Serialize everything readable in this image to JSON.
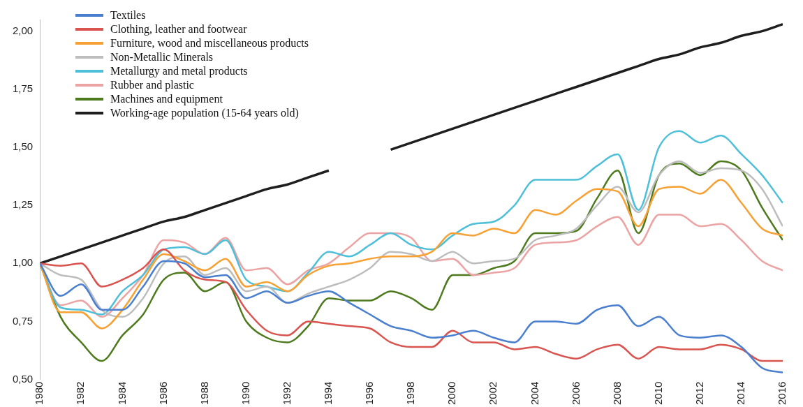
{
  "chart_data": {
    "type": "line",
    "x": [
      1980,
      1981,
      1982,
      1983,
      1984,
      1985,
      1986,
      1987,
      1988,
      1989,
      1990,
      1991,
      1992,
      1993,
      1994,
      1995,
      1996,
      1997,
      1998,
      1999,
      2000,
      2001,
      2002,
      2003,
      2004,
      2005,
      2006,
      2007,
      2008,
      2009,
      2010,
      2011,
      2012,
      2013,
      2014,
      2015,
      2016
    ],
    "xlim": [
      1980,
      2016
    ],
    "xticks": [
      1980,
      1982,
      1984,
      1986,
      1988,
      1990,
      1992,
      1994,
      1996,
      1998,
      2000,
      2002,
      2004,
      2006,
      2008,
      2010,
      2012,
      2014,
      2016
    ],
    "ylim": [
      0.5,
      2.05
    ],
    "yticks": [
      {
        "value": 0.5,
        "label": "0,50"
      },
      {
        "value": 0.75,
        "label": "0,75"
      },
      {
        "value": 1,
        "label": "1,00"
      },
      {
        "value": 1.25,
        "label": "1,25"
      },
      {
        "value": 1.5,
        "label": "1,50"
      },
      {
        "value": 1.75,
        "label": "1,75"
      },
      {
        "value": 2,
        "label": "2,00"
      }
    ],
    "grid": false,
    "legend": "top left",
    "marker": "none",
    "line_style": "solid",
    "series": [
      {
        "name": "Textiles",
        "color": "#4a7fcf",
        "values": [
          1.0,
          0.86,
          0.91,
          0.8,
          0.8,
          0.9,
          1.01,
          1.0,
          0.94,
          0.95,
          0.85,
          0.88,
          0.83,
          0.86,
          0.88,
          0.83,
          0.78,
          0.73,
          0.71,
          0.68,
          0.69,
          0.71,
          0.68,
          0.66,
          0.75,
          0.75,
          0.74,
          0.8,
          0.82,
          0.73,
          0.77,
          0.69,
          0.68,
          0.69,
          0.64,
          0.55,
          0.53
        ]
      },
      {
        "name": "Clothing, leather and footwear",
        "color": "#d9534f",
        "values": [
          1.0,
          0.99,
          1.0,
          0.9,
          0.93,
          0.98,
          1.06,
          0.97,
          0.93,
          0.92,
          0.8,
          0.71,
          0.69,
          0.75,
          0.74,
          0.73,
          0.72,
          0.66,
          0.64,
          0.64,
          0.71,
          0.66,
          0.66,
          0.63,
          0.64,
          0.61,
          0.59,
          0.63,
          0.65,
          0.59,
          0.64,
          0.63,
          0.63,
          0.65,
          0.63,
          0.58,
          0.58
        ]
      },
      {
        "name": "Furniture, wood and miscellaneous products",
        "color": "#f7a033",
        "values": [
          1.0,
          0.79,
          0.79,
          0.72,
          0.8,
          0.93,
          1.04,
          1.01,
          0.97,
          1.02,
          0.9,
          0.92,
          0.88,
          0.95,
          0.99,
          1.0,
          1.02,
          1.03,
          1.03,
          1.05,
          1.13,
          1.12,
          1.15,
          1.13,
          1.23,
          1.21,
          1.27,
          1.32,
          1.31,
          1.16,
          1.32,
          1.33,
          1.3,
          1.36,
          1.26,
          1.15,
          1.12
        ]
      },
      {
        "name": "Non-Metallic Minerals",
        "color": "#bdbdbd",
        "values": [
          1.0,
          0.95,
          0.93,
          0.8,
          0.77,
          0.85,
          1.0,
          1.03,
          0.95,
          0.98,
          0.88,
          0.9,
          0.83,
          0.87,
          0.9,
          0.93,
          0.98,
          1.05,
          1.04,
          1.01,
          1.05,
          1.0,
          1.01,
          1.02,
          1.1,
          1.12,
          1.15,
          1.25,
          1.33,
          1.22,
          1.38,
          1.44,
          1.39,
          1.41,
          1.4,
          1.32,
          1.16
        ]
      },
      {
        "name": "Metallurgy and metal products",
        "color": "#4dbfd9",
        "values": [
          1.0,
          0.81,
          0.8,
          0.78,
          0.88,
          0.95,
          1.06,
          1.07,
          1.04,
          1.1,
          0.93,
          0.9,
          0.88,
          0.96,
          1.05,
          1.03,
          1.08,
          1.13,
          1.08,
          1.06,
          1.12,
          1.17,
          1.18,
          1.25,
          1.36,
          1.36,
          1.36,
          1.42,
          1.47,
          1.23,
          1.5,
          1.57,
          1.52,
          1.55,
          1.47,
          1.38,
          1.26
        ]
      },
      {
        "name": "Rubber and plastic",
        "color": "#eba3a3",
        "values": [
          1.0,
          0.82,
          0.84,
          0.77,
          0.85,
          0.95,
          1.1,
          1.09,
          1.04,
          1.11,
          0.97,
          0.98,
          0.91,
          0.97,
          1.0,
          1.07,
          1.13,
          1.13,
          1.11,
          1.01,
          1.02,
          0.95,
          0.96,
          0.98,
          1.08,
          1.09,
          1.1,
          1.16,
          1.2,
          1.08,
          1.21,
          1.21,
          1.16,
          1.17,
          1.1,
          1.01,
          0.97
        ]
      },
      {
        "name": "Machines and equipment",
        "color": "#4e7a1e",
        "values": [
          1.0,
          0.77,
          0.66,
          0.58,
          0.69,
          0.78,
          0.93,
          0.96,
          0.88,
          0.92,
          0.75,
          0.68,
          0.66,
          0.73,
          0.85,
          0.84,
          0.84,
          0.88,
          0.85,
          0.8,
          0.95,
          0.95,
          0.98,
          1.01,
          1.13,
          1.13,
          1.14,
          1.28,
          1.4,
          1.13,
          1.38,
          1.43,
          1.38,
          1.44,
          1.4,
          1.24,
          1.1
        ]
      },
      {
        "name": "Working-age population (15-64 years old)",
        "color": "#1e1e1e",
        "values": [
          1.0,
          1.03,
          1.06,
          1.09,
          1.12,
          1.15,
          1.18,
          1.2,
          1.23,
          1.26,
          1.29,
          1.32,
          1.34,
          1.37,
          1.4,
          null,
          null,
          1.49,
          1.52,
          1.55,
          1.58,
          1.61,
          1.64,
          1.67,
          1.7,
          1.73,
          1.76,
          1.79,
          1.82,
          1.85,
          1.88,
          1.9,
          1.93,
          1.95,
          1.98,
          2.0,
          2.03
        ]
      }
    ]
  }
}
